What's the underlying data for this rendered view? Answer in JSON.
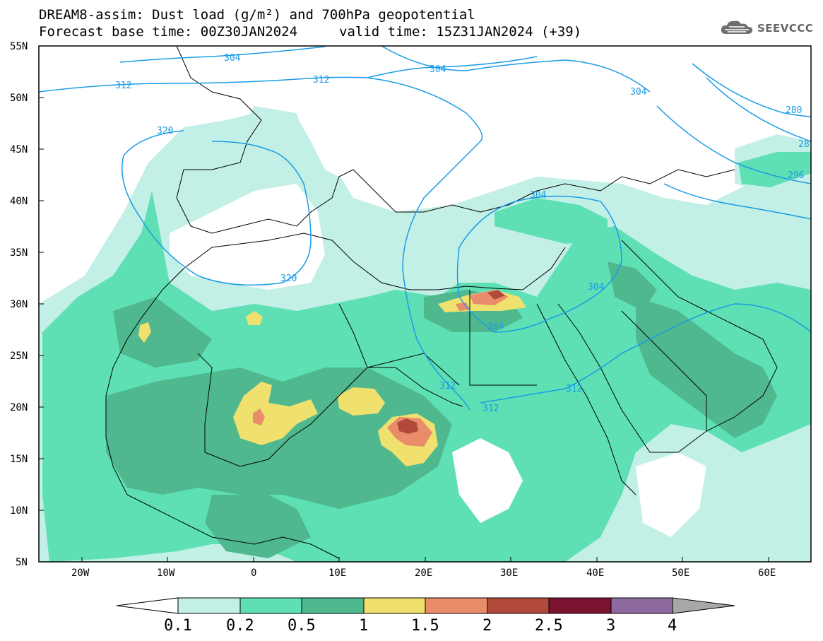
{
  "title": {
    "line1": "DREAM8-assim: Dust load (g/m²) and 700hPa geopotential",
    "line2": "Forecast base time: 00Z30JAN2024",
    "valid": "valid time: 15Z31JAN2024 (+39)"
  },
  "logo": {
    "icon": "cloud-logo-icon",
    "text": "SEEVCCC"
  },
  "map": {
    "lat_ticks": [
      "55N",
      "50N",
      "45N",
      "40N",
      "35N",
      "30N",
      "25N",
      "20N",
      "15N",
      "10N",
      "5N"
    ],
    "lon_ticks": [
      "20W",
      "10W",
      "0",
      "10E",
      "20E",
      "30E",
      "40E",
      "50E",
      "60E"
    ],
    "lon_range": [
      -25,
      65
    ],
    "lat_range": [
      5,
      55
    ],
    "contour_labels": [
      "304",
      "312",
      "304",
      "304",
      "280",
      "296",
      "28",
      "320",
      "312",
      "320",
      "304",
      "304",
      "304",
      "312",
      "312",
      "312"
    ]
  },
  "colorbar": {
    "colors": [
      "#c2efe6",
      "#5ee0b4",
      "#4fb88e",
      "#f0e06e",
      "#e88c6a",
      "#b24a3c",
      "#7a1230",
      "#8c6aa0"
    ],
    "labels": [
      "0.1",
      "0.2",
      "0.5",
      "1",
      "1.5",
      "2",
      "2.5",
      "3",
      "4"
    ]
  }
}
